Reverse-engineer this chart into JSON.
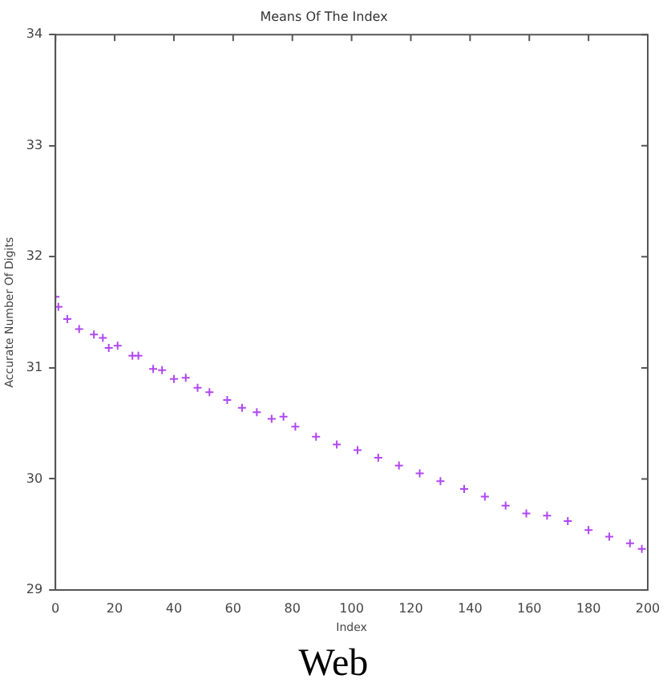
{
  "chart_data": {
    "type": "scatter",
    "title": "Means Of The Index",
    "xlabel": "Index",
    "ylabel": "Accurate Number Of Digits",
    "annotations": [
      "Web"
    ],
    "xlim": [
      0,
      200
    ],
    "xticks": [
      0,
      20,
      40,
      60,
      80,
      100,
      120,
      140,
      160,
      180,
      200
    ],
    "ylim": [
      29,
      34
    ],
    "yticks": [
      29,
      30,
      31,
      32,
      33,
      34
    ],
    "grid": false,
    "marker": "cross",
    "legend": false,
    "series": [
      {
        "color": "#b048f0",
        "x": [
          0,
          1,
          4,
          8,
          13,
          16,
          18,
          21,
          26,
          28,
          33,
          36,
          40,
          44,
          48,
          52,
          58,
          63,
          68,
          73,
          77,
          81,
          88,
          95,
          102,
          109,
          116,
          123,
          130,
          138,
          145,
          152,
          159,
          166,
          173,
          180,
          187,
          194,
          198
        ],
        "values": [
          31.64,
          31.55,
          31.44,
          31.35,
          31.3,
          31.27,
          31.18,
          31.2,
          31.11,
          31.11,
          30.99,
          30.98,
          30.9,
          30.91,
          30.82,
          30.78,
          30.71,
          30.64,
          30.6,
          30.54,
          30.56,
          30.47,
          30.38,
          30.31,
          30.26,
          30.19,
          30.12,
          30.05,
          29.98,
          29.91,
          29.84,
          29.76,
          29.69,
          29.67,
          29.62,
          29.54,
          29.48,
          29.42,
          29.37
        ]
      }
    ]
  }
}
